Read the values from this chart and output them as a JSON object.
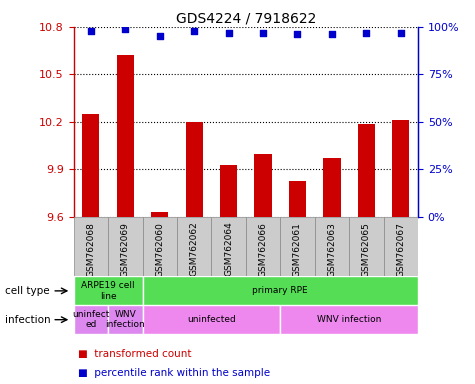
{
  "title": "GDS4224 / 7918622",
  "samples": [
    "GSM762068",
    "GSM762069",
    "GSM762060",
    "GSM762062",
    "GSM762064",
    "GSM762066",
    "GSM762061",
    "GSM762063",
    "GSM762065",
    "GSM762067"
  ],
  "bar_values": [
    10.25,
    10.62,
    9.63,
    10.2,
    9.93,
    10.0,
    9.83,
    9.97,
    10.19,
    10.21
  ],
  "percentile_values": [
    98,
    99,
    95,
    98,
    97,
    97,
    96,
    96,
    97,
    97
  ],
  "bar_color": "#cc0000",
  "dot_color": "#0000cc",
  "ylim": [
    9.6,
    10.8
  ],
  "yticks": [
    9.6,
    9.9,
    10.2,
    10.5,
    10.8
  ],
  "y2lim": [
    0,
    100
  ],
  "y2ticks": [
    0,
    25,
    50,
    75,
    100
  ],
  "y2ticklabels": [
    "0%",
    "25%",
    "50%",
    "75%",
    "100%"
  ],
  "cell_type_segments": [
    {
      "text": "ARPE19 cell\nline",
      "start": 0,
      "end": 2,
      "color": "#55dd55"
    },
    {
      "text": "primary RPE",
      "start": 2,
      "end": 10,
      "color": "#55dd55"
    }
  ],
  "infection_segments": [
    {
      "text": "uninfect\ned",
      "start": 0,
      "end": 1,
      "color": "#dd88ee"
    },
    {
      "text": "WNV\ninfection",
      "start": 1,
      "end": 2,
      "color": "#dd88ee"
    },
    {
      "text": "uninfected",
      "start": 2,
      "end": 6,
      "color": "#ee88ee"
    },
    {
      "text": "WNV infection",
      "start": 6,
      "end": 10,
      "color": "#ee88ee"
    }
  ],
  "legend_items": [
    {
      "label": "transformed count",
      "color": "#cc0000"
    },
    {
      "label": "percentile rank within the sample",
      "color": "#0000cc"
    }
  ],
  "row_labels": [
    "cell type",
    "infection"
  ],
  "tick_color_left": "#cc0000",
  "tick_color_right": "#0000cc",
  "xlabel_bg_color": "#cccccc",
  "border_color": "#888888"
}
